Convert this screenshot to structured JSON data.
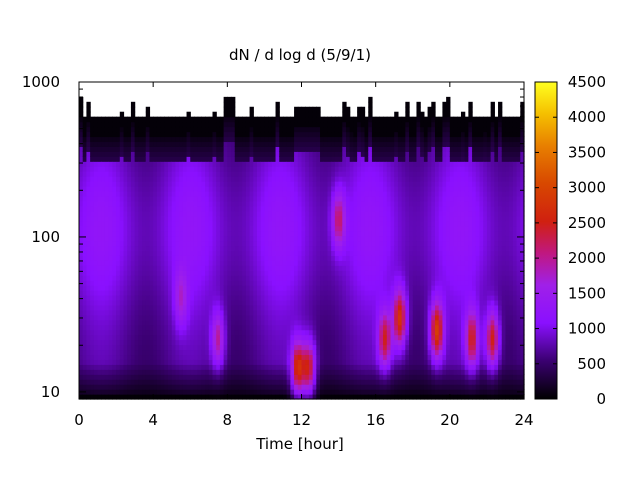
{
  "chart_data": {
    "type": "heatmap",
    "title": "dN / d log d (5/9/1)",
    "xlabel": "Time [hour]",
    "ylabel": "",
    "x_range": [
      0,
      24
    ],
    "y_range": [
      9,
      1000
    ],
    "y_scale": "log",
    "x_ticks": [
      "0",
      "4",
      "8",
      "12",
      "16",
      "20",
      "24"
    ],
    "y_ticks": [
      "10",
      "100",
      "1000"
    ],
    "colorbar": {
      "range": [
        0,
        4500
      ],
      "ticks": [
        "0",
        "500",
        "1000",
        "1500",
        "2000",
        "2500",
        "3000",
        "3500",
        "4000",
        "4500"
      ],
      "palette": "black-purple-red-orange-yellow"
    },
    "grid": false,
    "data_ceiling_approx": 600,
    "hotspots": [
      {
        "time": 11.8,
        "diameter": 14,
        "value": 3000
      },
      {
        "time": 12.4,
        "diameter": 14,
        "value": 2800
      },
      {
        "time": 14.0,
        "diameter": 130,
        "value": 2200
      },
      {
        "time": 16.5,
        "diameter": 22,
        "value": 2600
      },
      {
        "time": 17.3,
        "diameter": 30,
        "value": 3000
      },
      {
        "time": 19.3,
        "diameter": 25,
        "value": 3100
      },
      {
        "time": 21.2,
        "diameter": 22,
        "value": 2600
      },
      {
        "time": 22.3,
        "diameter": 22,
        "value": 2800
      },
      {
        "time": 7.5,
        "diameter": 22,
        "value": 2200
      },
      {
        "time": 5.5,
        "diameter": 40,
        "value": 1700
      }
    ]
  }
}
